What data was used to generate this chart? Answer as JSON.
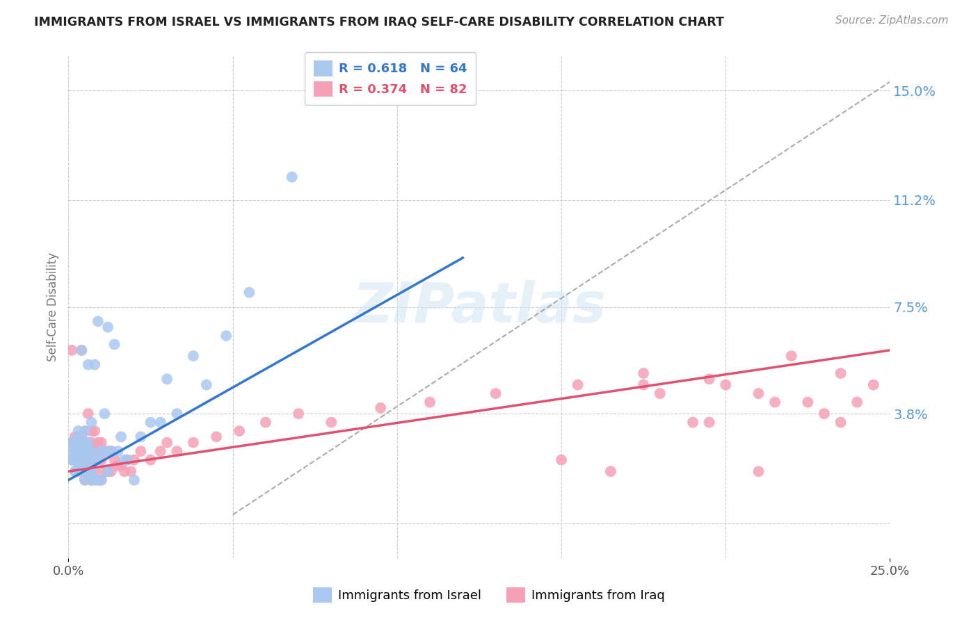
{
  "title": "IMMIGRANTS FROM ISRAEL VS IMMIGRANTS FROM IRAQ SELF-CARE DISABILITY CORRELATION CHART",
  "source": "Source: ZipAtlas.com",
  "ylabel": "Self-Care Disability",
  "xlim": [
    0.0,
    0.25
  ],
  "ylim": [
    -0.012,
    0.162
  ],
  "yticks": [
    0.0,
    0.038,
    0.075,
    0.112,
    0.15
  ],
  "ytick_labels": [
    "",
    "3.8%",
    "7.5%",
    "11.2%",
    "15.0%"
  ],
  "xtick_labels": [
    "0.0%",
    "25.0%"
  ],
  "background_color": "#ffffff",
  "grid_color": "#cccccc",
  "israel_color": "#a8c8f0",
  "iraq_color": "#f5a0b5",
  "israel_line_color": "#3377cc",
  "iraq_line_color": "#e05070",
  "dashed_line_color": "#aaaaaa",
  "legend_israel_R": "0.618",
  "legend_israel_N": "64",
  "legend_iraq_R": "0.374",
  "legend_iraq_N": "82",
  "watermark": "ZIPatlas",
  "israel_line": [
    0.0,
    0.015,
    0.12,
    0.092
  ],
  "iraq_line": [
    0.0,
    0.018,
    0.25,
    0.06
  ],
  "dashed_line": [
    0.05,
    0.003,
    0.25,
    0.153
  ],
  "israel_scatter_x": [
    0.001,
    0.001,
    0.001,
    0.002,
    0.002,
    0.002,
    0.002,
    0.003,
    0.003,
    0.003,
    0.003,
    0.003,
    0.003,
    0.003,
    0.004,
    0.004,
    0.004,
    0.004,
    0.004,
    0.005,
    0.005,
    0.005,
    0.005,
    0.005,
    0.005,
    0.005,
    0.006,
    0.006,
    0.006,
    0.006,
    0.006,
    0.007,
    0.007,
    0.007,
    0.007,
    0.008,
    0.008,
    0.008,
    0.009,
    0.009,
    0.009,
    0.01,
    0.01,
    0.011,
    0.011,
    0.012,
    0.012,
    0.013,
    0.014,
    0.015,
    0.016,
    0.017,
    0.018,
    0.02,
    0.022,
    0.025,
    0.028,
    0.03,
    0.033,
    0.038,
    0.042,
    0.048,
    0.055,
    0.068
  ],
  "israel_scatter_y": [
    0.022,
    0.025,
    0.028,
    0.018,
    0.022,
    0.025,
    0.028,
    0.018,
    0.02,
    0.022,
    0.025,
    0.028,
    0.03,
    0.032,
    0.018,
    0.022,
    0.025,
    0.028,
    0.06,
    0.015,
    0.018,
    0.02,
    0.022,
    0.025,
    0.028,
    0.032,
    0.018,
    0.022,
    0.025,
    0.028,
    0.055,
    0.015,
    0.018,
    0.025,
    0.035,
    0.015,
    0.022,
    0.055,
    0.015,
    0.022,
    0.07,
    0.015,
    0.025,
    0.025,
    0.038,
    0.018,
    0.068,
    0.025,
    0.062,
    0.025,
    0.03,
    0.022,
    0.022,
    0.015,
    0.03,
    0.035,
    0.035,
    0.05,
    0.038,
    0.058,
    0.048,
    0.065,
    0.08,
    0.12
  ],
  "iraq_scatter_x": [
    0.001,
    0.001,
    0.001,
    0.002,
    0.002,
    0.002,
    0.003,
    0.003,
    0.003,
    0.004,
    0.004,
    0.004,
    0.004,
    0.005,
    0.005,
    0.005,
    0.005,
    0.006,
    0.006,
    0.006,
    0.006,
    0.007,
    0.007,
    0.007,
    0.007,
    0.007,
    0.008,
    0.008,
    0.008,
    0.009,
    0.009,
    0.009,
    0.01,
    0.01,
    0.01,
    0.011,
    0.011,
    0.012,
    0.012,
    0.013,
    0.013,
    0.014,
    0.015,
    0.016,
    0.017,
    0.018,
    0.019,
    0.02,
    0.022,
    0.025,
    0.028,
    0.03,
    0.033,
    0.038,
    0.045,
    0.052,
    0.06,
    0.07,
    0.08,
    0.095,
    0.11,
    0.13,
    0.155,
    0.175,
    0.195,
    0.22,
    0.235,
    0.245,
    0.19,
    0.21,
    0.23,
    0.2,
    0.24,
    0.175,
    0.215,
    0.235,
    0.225,
    0.21,
    0.195,
    0.18,
    0.165,
    0.15
  ],
  "iraq_scatter_y": [
    0.022,
    0.028,
    0.06,
    0.018,
    0.025,
    0.03,
    0.018,
    0.025,
    0.03,
    0.018,
    0.025,
    0.03,
    0.06,
    0.015,
    0.022,
    0.028,
    0.032,
    0.018,
    0.022,
    0.028,
    0.038,
    0.015,
    0.02,
    0.025,
    0.028,
    0.032,
    0.018,
    0.025,
    0.032,
    0.015,
    0.022,
    0.028,
    0.015,
    0.022,
    0.028,
    0.018,
    0.025,
    0.018,
    0.025,
    0.018,
    0.025,
    0.022,
    0.02,
    0.02,
    0.018,
    0.022,
    0.018,
    0.022,
    0.025,
    0.022,
    0.025,
    0.028,
    0.025,
    0.028,
    0.03,
    0.032,
    0.035,
    0.038,
    0.035,
    0.04,
    0.042,
    0.045,
    0.048,
    0.052,
    0.05,
    0.058,
    0.052,
    0.048,
    0.035,
    0.045,
    0.038,
    0.048,
    0.042,
    0.048,
    0.042,
    0.035,
    0.042,
    0.018,
    0.035,
    0.045,
    0.018,
    0.022
  ]
}
